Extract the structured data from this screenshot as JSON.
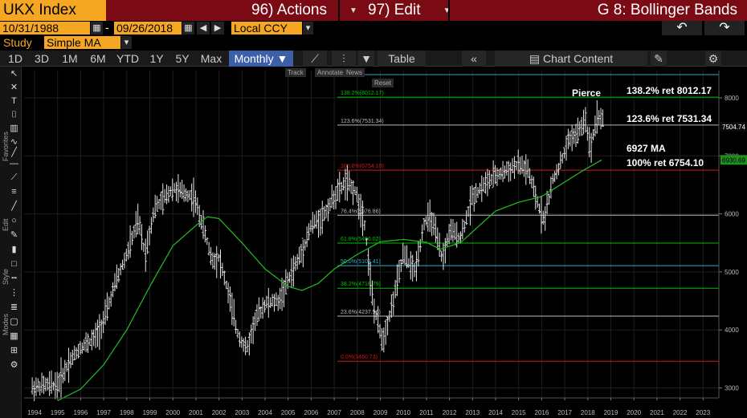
{
  "header": {
    "ticker": "UKX Index",
    "actions": "96) Actions",
    "edit": "97) Edit",
    "title": "G 8: Bollinger Bands"
  },
  "range": {
    "start": "10/31/1988",
    "end": "09/26/2018",
    "dash": "-",
    "currency": "Local CCY"
  },
  "study": {
    "label": "Study",
    "value": "Simple MA"
  },
  "toolbar": {
    "periods": [
      "1D",
      "3D",
      "1M",
      "6M",
      "YTD",
      "1Y",
      "5Y",
      "Max"
    ],
    "frequency": "Monthly ▼",
    "table": "Table",
    "chart_content": "Chart Content"
  },
  "minibar": {
    "track": "Track",
    "annotate": "Annotate",
    "news": "News",
    "reset": "Reset"
  },
  "side_labels": {
    "favorites": "Favorites",
    "edit": "Edit",
    "style": "Style",
    "modes": "Modes"
  },
  "annotations": {
    "pierce": "Pierce",
    "r1382": "138.2% ret 8012.17",
    "r1236": "123.6% ret 7531.34",
    "ma": "6927 MA",
    "r100": "100% ret 6754.10"
  },
  "price_tags": {
    "last": "7504.74",
    "ma": "6930.69"
  },
  "chart_data": {
    "type": "candlestick",
    "series_ma_label": "6927 MA",
    "y_axis_ticks": [
      3000,
      4000,
      5000,
      6000,
      7000,
      8000
    ],
    "ylim": [
      2750,
      8600
    ],
    "x_tick_labels": [
      "1994",
      "1995",
      "1996",
      "1997",
      "1998",
      "1999",
      "2000",
      "2001",
      "2002",
      "2003",
      "2004",
      "2005",
      "2006",
      "2007",
      "2008",
      "2009",
      "2010",
      "2011",
      "2012",
      "2013",
      "2014",
      "2015",
      "2016",
      "2017",
      "2018",
      "2019",
      "2020",
      "2021",
      "2022",
      "2023"
    ],
    "fib_levels": [
      {
        "label": "138.2%(8012.17)",
        "value": 8012.17,
        "color": "#00c000"
      },
      {
        "label": "123.6%(7531.34)",
        "value": 7531.34,
        "color": "#bbbbbb"
      },
      {
        "label": "100.0%(6754.10)",
        "value": 6754.1,
        "color": "#d01818"
      },
      {
        "label": "76.4%(5976.86)",
        "value": 5976.86,
        "color": "#bbbbbb"
      },
      {
        "label": "61.8%(5496.02)",
        "value": 5496.02,
        "color": "#00c000"
      },
      {
        "label": "50.0%(5107.41)",
        "value": 5107.41,
        "color": "#33aacc"
      },
      {
        "label": "38.2%(4718.79)",
        "value": 4718.79,
        "color": "#00c000"
      },
      {
        "label": "23.6%(4237.96)",
        "value": 4237.96,
        "color": "#bbbbbb"
      },
      {
        "label": "0.0%(3460.73)",
        "value": 3460.73,
        "color": "#d01818"
      }
    ],
    "price_path": [
      [
        1993.9,
        3000
      ],
      [
        1994.5,
        3050
      ],
      [
        1995.0,
        3050
      ],
      [
        1995.5,
        3450
      ],
      [
        1996.0,
        3700
      ],
      [
        1996.6,
        3850
      ],
      [
        1997.0,
        4150
      ],
      [
        1997.5,
        4800
      ],
      [
        1998.0,
        5300
      ],
      [
        1998.5,
        5900
      ],
      [
        1998.8,
        5300
      ],
      [
        1999.2,
        6100
      ],
      [
        1999.6,
        6250
      ],
      [
        2000.0,
        6450
      ],
      [
        2000.5,
        6350
      ],
      [
        2000.9,
        6300
      ],
      [
        2001.3,
        5800
      ],
      [
        2001.7,
        5200
      ],
      [
        2002.0,
        5250
      ],
      [
        2002.4,
        4650
      ],
      [
        2002.8,
        3950
      ],
      [
        2003.2,
        3650
      ],
      [
        2003.6,
        4200
      ],
      [
        2004.0,
        4450
      ],
      [
        2004.6,
        4500
      ],
      [
        2005.0,
        4850
      ],
      [
        2005.6,
        5350
      ],
      [
        2006.0,
        5800
      ],
      [
        2006.5,
        5950
      ],
      [
        2007.0,
        6300
      ],
      [
        2007.5,
        6550
      ],
      [
        2007.9,
        6400
      ],
      [
        2008.3,
        5900
      ],
      [
        2008.7,
        4400
      ],
      [
        2009.1,
        3800
      ],
      [
        2009.5,
        4400
      ],
      [
        2010.0,
        5300
      ],
      [
        2010.5,
        5000
      ],
      [
        2010.9,
        5850
      ],
      [
        2011.2,
        5950
      ],
      [
        2011.7,
        5200
      ],
      [
        2012.0,
        5700
      ],
      [
        2012.5,
        5600
      ],
      [
        2013.0,
        6300
      ],
      [
        2013.5,
        6500
      ],
      [
        2014.0,
        6650
      ],
      [
        2014.5,
        6750
      ],
      [
        2015.0,
        6850
      ],
      [
        2015.4,
        6750
      ],
      [
        2015.8,
        6200
      ],
      [
        2016.1,
        5900
      ],
      [
        2016.5,
        6600
      ],
      [
        2016.9,
        6950
      ],
      [
        2017.2,
        7300
      ],
      [
        2017.6,
        7400
      ],
      [
        2017.9,
        7650
      ],
      [
        2018.1,
        7100
      ],
      [
        2018.4,
        7700
      ],
      [
        2018.7,
        7600
      ]
    ],
    "ma_path": [
      [
        1995.0,
        2780
      ],
      [
        1996.0,
        2980
      ],
      [
        1997.0,
        3400
      ],
      [
        1998.0,
        4000
      ],
      [
        1999.0,
        4750
      ],
      [
        2000.0,
        5450
      ],
      [
        2001.0,
        5800
      ],
      [
        2001.5,
        5950
      ],
      [
        2002.0,
        5920
      ],
      [
        2003.0,
        5500
      ],
      [
        2004.0,
        5050
      ],
      [
        2005.0,
        4750
      ],
      [
        2005.6,
        4680
      ],
      [
        2006.3,
        4800
      ],
      [
        2007.0,
        5050
      ],
      [
        2008.0,
        5300
      ],
      [
        2009.0,
        5520
      ],
      [
        2010.0,
        5560
      ],
      [
        2011.0,
        5510
      ],
      [
        2011.6,
        5390
      ],
      [
        2012.5,
        5510
      ],
      [
        2013.3,
        5800
      ],
      [
        2014.0,
        6050
      ],
      [
        2015.0,
        6200
      ],
      [
        2016.0,
        6300
      ],
      [
        2017.0,
        6550
      ],
      [
        2017.8,
        6750
      ],
      [
        2018.6,
        6930
      ]
    ],
    "pierce_year": 2017.9
  }
}
